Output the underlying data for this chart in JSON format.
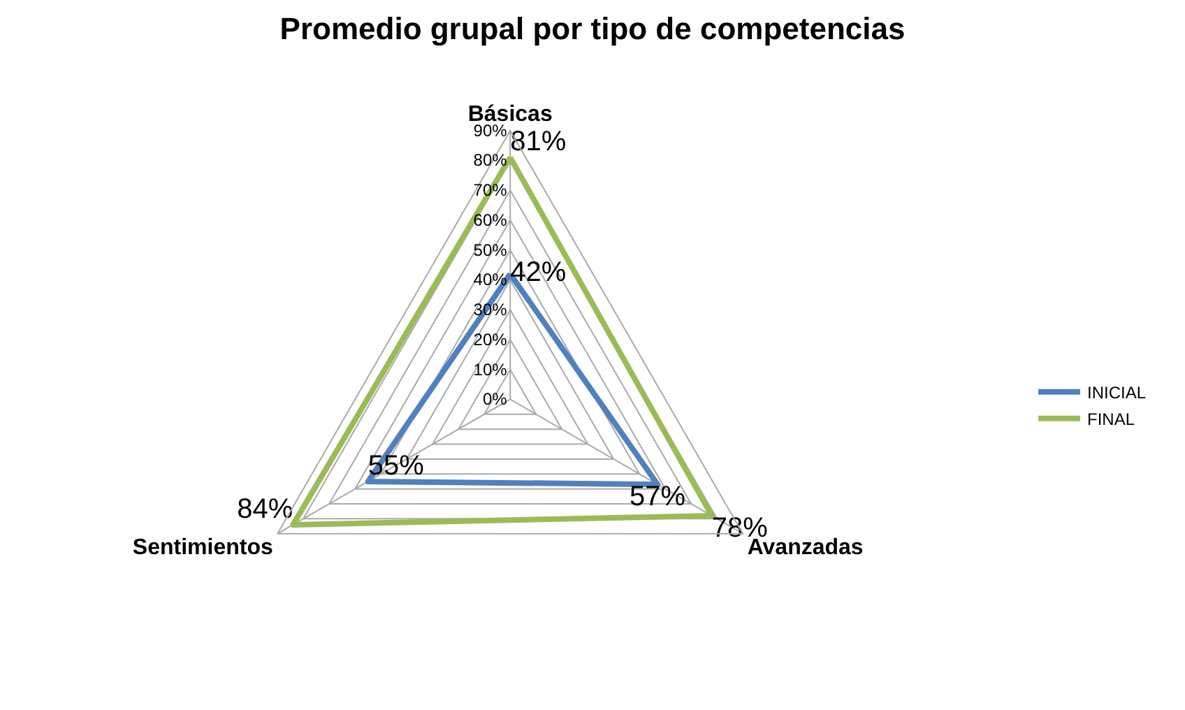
{
  "chart_data": {
    "type": "radar",
    "title": "Promedio grupal por tipo de competencias",
    "categories": [
      "Básicas",
      "Avanzadas",
      "Sentimientos"
    ],
    "series": [
      {
        "name": "INICIAL",
        "color": "#4f81bd",
        "values": [
          42,
          57,
          55
        ],
        "value_labels": [
          "42%",
          "57%",
          "55%"
        ]
      },
      {
        "name": "FINAL",
        "color": "#9bbb59",
        "values": [
          81,
          78,
          84
        ],
        "value_labels": [
          "81%",
          "78%",
          "84%"
        ]
      }
    ],
    "ylim": [
      0,
      90
    ],
    "yticks": [
      {
        "value": 0,
        "label": "0%"
      },
      {
        "value": 10,
        "label": "10%"
      },
      {
        "value": 20,
        "label": "20%"
      },
      {
        "value": 30,
        "label": "30%"
      },
      {
        "value": 40,
        "label": "40%"
      },
      {
        "value": 50,
        "label": "50%"
      },
      {
        "value": 60,
        "label": "60%"
      },
      {
        "value": 70,
        "label": "70%"
      },
      {
        "value": 80,
        "label": "80%"
      },
      {
        "value": 90,
        "label": "90%"
      }
    ],
    "grid": true,
    "legend": "right",
    "marker": "none",
    "line_style": "solid"
  }
}
